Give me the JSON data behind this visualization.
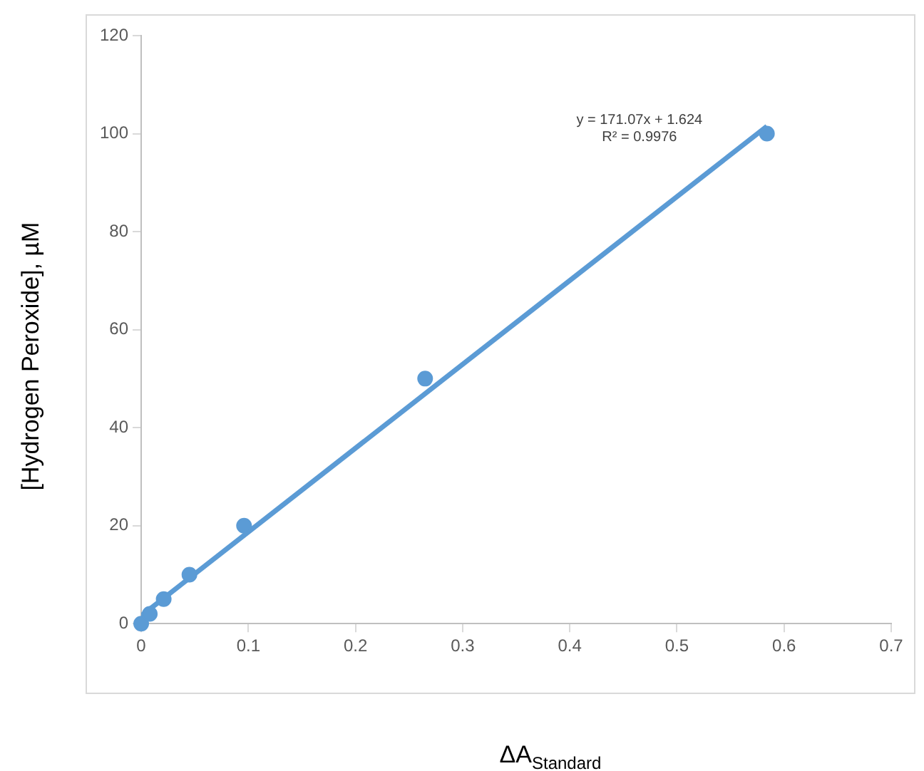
{
  "chart_data": {
    "type": "scatter",
    "xlabel": "ΔA$_{Standard}$",
    "ylabel": "[Hydrogen Peroxide], µM",
    "annotations": [
      "y = 171.07x + 1.624",
      "R² = 0.9976"
    ],
    "series": [
      {
        "type": "scatter",
        "color": "#5b9bd5",
        "x": [
          0,
          0.008,
          0.021,
          0.045,
          0.096,
          0.265,
          0.584
        ],
        "values": [
          0,
          2,
          5,
          10,
          20,
          50,
          100
        ]
      },
      {
        "type": "line",
        "marker": "none",
        "color": "#5b9bd5",
        "x": [
          0,
          0.584
        ],
        "values": [
          1.6,
          101.5
        ]
      }
    ],
    "xlim": [
      0,
      0.7
    ],
    "xticks": [
      0,
      0.1,
      0.2,
      0.3,
      0.4,
      0.5,
      0.6,
      0.7
    ],
    "ylim": [
      0,
      120
    ],
    "yticks": [
      0,
      20,
      40,
      60,
      80,
      100,
      120
    ],
    "grid": false,
    "legend": false,
    "marker": "circle"
  }
}
